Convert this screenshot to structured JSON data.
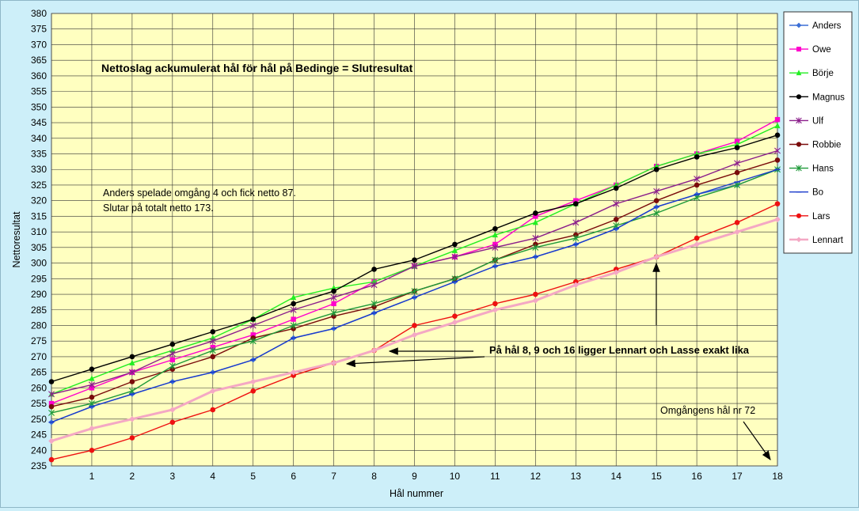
{
  "chart_data": {
    "type": "line",
    "title": "Nettoslag ackumulerat hål för hål på Bedinge = Slutresultat",
    "xlabel": "Hål nummer",
    "ylabel": "Nettoresultat",
    "x": [
      0,
      1,
      2,
      3,
      4,
      5,
      6,
      7,
      8,
      9,
      10,
      11,
      12,
      13,
      14,
      15,
      16,
      17,
      18
    ],
    "x_tick_labels": [
      "1",
      "2",
      "3",
      "4",
      "5",
      "6",
      "7",
      "8",
      "9",
      "10",
      "11",
      "12",
      "13",
      "14",
      "15",
      "16",
      "17",
      "18"
    ],
    "xlim": [
      0,
      18
    ],
    "ylim": [
      235,
      380
    ],
    "ytick_step": 5,
    "grid": true,
    "legend_position": "right",
    "series": [
      {
        "name": "Anders",
        "color": "#3c6fd6",
        "marker": "diamond",
        "values": [
          249,
          254,
          258,
          262,
          265,
          269,
          276,
          279,
          284,
          289,
          294,
          299,
          302,
          306,
          311,
          318,
          322,
          325,
          330
        ]
      },
      {
        "name": "Owe",
        "color": "#ff00cc",
        "marker": "square",
        "values": [
          255,
          260,
          265,
          269,
          273,
          277,
          282,
          287,
          294,
          299,
          302,
          306,
          315,
          320,
          325,
          331,
          335,
          339,
          346
        ]
      },
      {
        "name": "Börje",
        "color": "#22ee22",
        "marker": "triangle",
        "values": [
          258,
          263,
          268,
          272,
          276,
          282,
          289,
          292,
          294,
          299,
          304,
          309,
          313,
          319,
          325,
          331,
          335,
          338,
          344
        ]
      },
      {
        "name": "Magnus",
        "color": "#000000",
        "marker": "circle",
        "values": [
          262,
          266,
          270,
          274,
          278,
          282,
          287,
          291,
          298,
          301,
          306,
          311,
          316,
          319,
          324,
          330,
          334,
          337,
          341
        ]
      },
      {
        "name": "Ulf",
        "color": "#8b1f8b",
        "marker": "star",
        "values": [
          258,
          261,
          265,
          271,
          275,
          280,
          285,
          289,
          293,
          299,
          302,
          305,
          308,
          313,
          319,
          323,
          327,
          332,
          336
        ]
      },
      {
        "name": "Robbie",
        "color": "#7a0b0b",
        "marker": "circle",
        "values": [
          254,
          257,
          262,
          266,
          270,
          276,
          279,
          283,
          286,
          291,
          295,
          301,
          306,
          309,
          314,
          320,
          325,
          329,
          333
        ]
      },
      {
        "name": "Hans",
        "color": "#1f9a3a",
        "marker": "star",
        "values": [
          252,
          255,
          259,
          267,
          272,
          275,
          280,
          284,
          287,
          291,
          295,
          301,
          305,
          308,
          312,
          316,
          321,
          325,
          330
        ]
      },
      {
        "name": "Bo",
        "color": "#1a3acc",
        "marker": "dash",
        "values": [
          249,
          254,
          258,
          262,
          265,
          269,
          276,
          279,
          284,
          289,
          294,
          299,
          302,
          306,
          311,
          318,
          322,
          326,
          330
        ]
      },
      {
        "name": "Lars",
        "color": "#ee1111",
        "marker": "circle",
        "values": [
          237,
          240,
          244,
          249,
          253,
          259,
          264,
          268,
          272,
          280,
          283,
          287,
          290,
          294,
          298,
          302,
          308,
          313,
          319
        ]
      },
      {
        "name": "Lennart",
        "color": "#f4a8c4",
        "marker": "diamond",
        "values": [
          243,
          247,
          250,
          253,
          259,
          262,
          265,
          268,
          272,
          277,
          281,
          285,
          288,
          293,
          297,
          302,
          306,
          310,
          314
        ]
      }
    ],
    "annotations": {
      "note1": "Anders spelade omgång 4 och fick netto 87.",
      "note2": "Slutar på totalt netto 173.",
      "note3": "På hål 8, 9 och 16 ligger Lennart och Lasse exakt lika",
      "note4": "Omgångens hål nr 72"
    }
  }
}
